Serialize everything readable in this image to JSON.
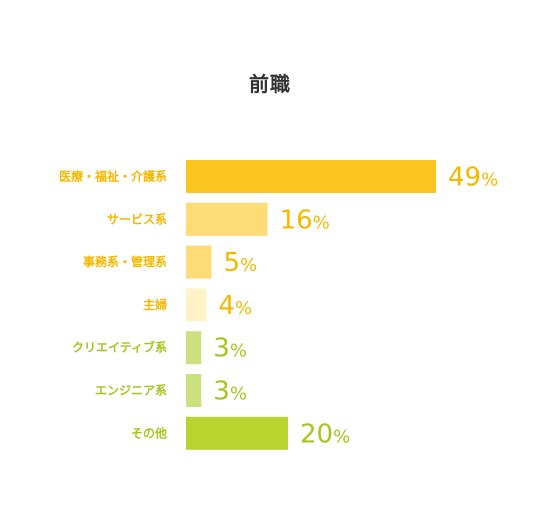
{
  "chart_data": {
    "type": "bar",
    "orientation": "horizontal",
    "title": "前職",
    "unit": "%",
    "categories": [
      "医療・福祉・介護系",
      "サービス系",
      "事務系・管理系",
      "主婦",
      "クリエイティブ系",
      "エンジニア系",
      "その他"
    ],
    "values": [
      49,
      16,
      5,
      4,
      3,
      3,
      20
    ],
    "bar_colors": [
      "#FCC520",
      "#FDDB77",
      "#FDDB77",
      "#FEF2C6",
      "#CDE07F",
      "#CDE07F",
      "#B9D32F"
    ],
    "label_colors": [
      "#F5B800",
      "#F5B800",
      "#F5B800",
      "#F5B800",
      "#A7C520",
      "#A7C520",
      "#A7C520"
    ],
    "value_colors": [
      "#F5B800",
      "#F5B800",
      "#F5B800",
      "#F5B800",
      "#A7C520",
      "#A7C520",
      "#A7C520"
    ],
    "xlim": [
      0,
      49
    ],
    "grid": false,
    "legend": "none"
  }
}
